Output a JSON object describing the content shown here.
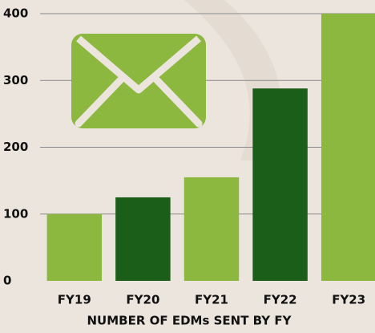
{
  "chart_data": {
    "type": "bar",
    "x_label": "NUMBER OF EDMs SENT BY FY",
    "categories": [
      "FY19",
      "FY20",
      "FY21",
      "FY22",
      "FY23"
    ],
    "values": [
      100,
      125,
      155,
      288,
      400
    ],
    "colors": [
      "#8db83f",
      "#1b5e1a",
      "#8db83f",
      "#1b5e1a",
      "#8db83f"
    ],
    "ylim": [
      0,
      400
    ],
    "yticks": [
      0,
      100,
      200,
      300,
      400
    ],
    "grid": true
  }
}
